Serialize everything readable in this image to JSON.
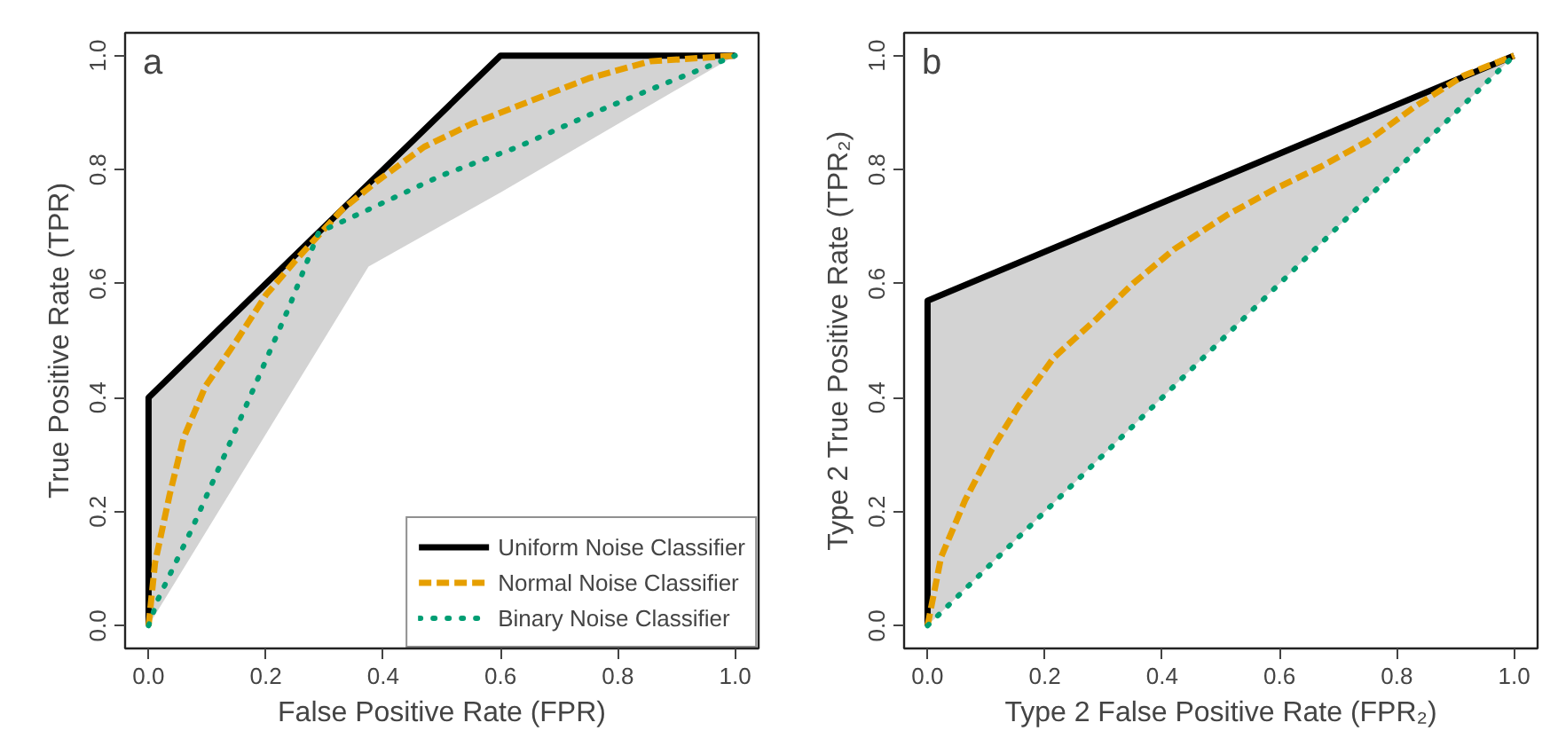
{
  "chart_data": [
    {
      "type": "line",
      "annotations": [
        "a"
      ],
      "xlabel": "False Positive Rate (FPR)",
      "ylabel": "True Positive Rate (TPR)",
      "xlim": [
        -0.04,
        1.04
      ],
      "ylim": [
        -0.04,
        1.04
      ],
      "xticks": [
        {
          "value": 0,
          "label": "0.0"
        },
        {
          "value": 0.2,
          "label": "0.2"
        },
        {
          "value": 0.4,
          "label": "0.4"
        },
        {
          "value": 0.6,
          "label": "0.6"
        },
        {
          "value": 0.8,
          "label": "0.8"
        },
        {
          "value": 1,
          "label": "1.0"
        }
      ],
      "yticks": [
        {
          "value": 0,
          "label": "0.0"
        },
        {
          "value": 0.2,
          "label": "0.2"
        },
        {
          "value": 0.4,
          "label": "0.4"
        },
        {
          "value": 0.6,
          "label": "0.6"
        },
        {
          "value": 0.8,
          "label": "0.8"
        },
        {
          "value": 1,
          "label": "1.0"
        }
      ],
      "grid": false,
      "legend": "bottom right",
      "series": [
        {
          "name": "Uniform Noise Classifier",
          "color": "#000000",
          "line_style": "solid",
          "x": [
            0,
            0,
            0.375,
            0.6,
            1
          ],
          "values": [
            0,
            0.4,
            0.775,
            1,
            1
          ],
          "lower": [
            0,
            0,
            0.63,
            0.76,
            1
          ],
          "upper": [
            0,
            0.4,
            0.775,
            1,
            1
          ]
        },
        {
          "name": "Normal Noise Classifier",
          "color": "#e69f00",
          "line_style": "dashed",
          "x": [
            0,
            0.011,
            0.036,
            0.06,
            0.097,
            0.15,
            0.2,
            0.25,
            0.33,
            0.39,
            0.47,
            0.55,
            0.65,
            0.75,
            0.855,
            1
          ],
          "values": [
            0,
            0.11,
            0.23,
            0.33,
            0.42,
            0.5,
            0.58,
            0.64,
            0.73,
            0.78,
            0.84,
            0.88,
            0.92,
            0.96,
            0.99,
            1
          ]
        },
        {
          "name": "Binary Noise Classifier",
          "color": "#009e73",
          "line_style": "dotted",
          "x": [
            0,
            0.016,
            0.074,
            0.13,
            0.185,
            0.24,
            0.29,
            0.375,
            0.5,
            0.63,
            0.76,
            0.89,
            1
          ],
          "values": [
            0,
            0.046,
            0.17,
            0.3,
            0.43,
            0.56,
            0.69,
            0.73,
            0.79,
            0.84,
            0.9,
            0.955,
            1
          ]
        }
      ]
    },
    {
      "type": "line",
      "annotations": [
        "b"
      ],
      "xlabel": "Type 2 False Positive Rate (FPR₂)",
      "ylabel": "Type 2 True Positive Rate (TPR₂)",
      "xlim": [
        -0.04,
        1.04
      ],
      "ylim": [
        -0.04,
        1.04
      ],
      "xticks": [
        {
          "value": 0,
          "label": "0.0"
        },
        {
          "value": 0.2,
          "label": "0.2"
        },
        {
          "value": 0.4,
          "label": "0.4"
        },
        {
          "value": 0.6,
          "label": "0.6"
        },
        {
          "value": 0.8,
          "label": "0.8"
        },
        {
          "value": 1,
          "label": "1.0"
        }
      ],
      "yticks": [
        {
          "value": 0,
          "label": "0.0"
        },
        {
          "value": 0.2,
          "label": "0.2"
        },
        {
          "value": 0.4,
          "label": "0.4"
        },
        {
          "value": 0.6,
          "label": "0.6"
        },
        {
          "value": 0.8,
          "label": "0.8"
        },
        {
          "value": 1,
          "label": "1.0"
        }
      ],
      "grid": false,
      "series": [
        {
          "color": "#000000",
          "line_style": "solid",
          "x": [
            0,
            0,
            1
          ],
          "values": [
            0,
            0.57,
            1
          ],
          "lower": [
            0,
            0,
            1
          ],
          "upper": [
            0,
            0.57,
            1
          ]
        },
        {
          "color": "#e69f00",
          "line_style": "dashed",
          "x": [
            0,
            0.023,
            0.064,
            0.11,
            0.155,
            0.215,
            0.29,
            0.35,
            0.42,
            0.51,
            0.59,
            0.67,
            0.75,
            0.83,
            0.914,
            1
          ],
          "values": [
            0,
            0.12,
            0.22,
            0.31,
            0.385,
            0.47,
            0.54,
            0.6,
            0.66,
            0.72,
            0.765,
            0.805,
            0.85,
            0.91,
            0.965,
            1
          ]
        },
        {
          "color": "#009e73",
          "line_style": "dotted",
          "x": [
            0,
            1
          ],
          "values": [
            0,
            1
          ]
        }
      ]
    }
  ]
}
